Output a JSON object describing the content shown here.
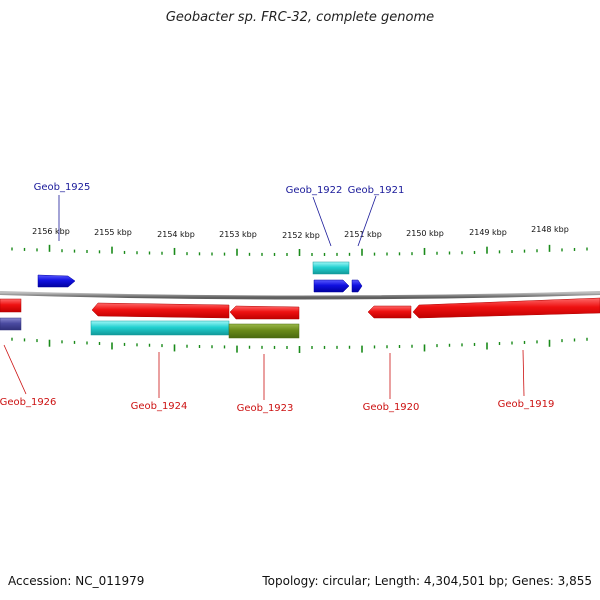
{
  "title": "Geobacter sp. FRC-32, complete genome",
  "footer": {
    "accession": "Accession: NC_011979",
    "topology": "Topology: circular; Length: 4,304,501 bp; Genes: 3,855"
  },
  "colors": {
    "backbone": "#8a8a8a",
    "ticks": "#1a8a1a",
    "forward_gene": "#1010e0",
    "forward_rna": "#00e0e0",
    "reverse_gene": "#ee1111",
    "reverse_cyan": "#22cccc",
    "reverse_olive": "#6a8a1a",
    "reverse_navy": "#4a4aa0",
    "top_labels": "#1a1a9a",
    "bottom_labels": "#cc1111"
  },
  "ticks": [
    {
      "label": "2156 kbp"
    },
    {
      "label": "2155 kbp"
    },
    {
      "label": "2154 kbp"
    },
    {
      "label": "2153 kbp"
    },
    {
      "label": "2152 kbp"
    },
    {
      "label": "2151 kbp"
    },
    {
      "label": "2150 kbp"
    },
    {
      "label": "2149 kbp"
    },
    {
      "label": "2148 kbp"
    }
  ],
  "top_genes": [
    {
      "label": "Geob_1925"
    },
    {
      "label": "Geob_1922"
    },
    {
      "label": "Geob_1921"
    }
  ],
  "bottom_genes": [
    {
      "label": "Geob_1926"
    },
    {
      "label": "Geob_1924"
    },
    {
      "label": "Geob_1923"
    },
    {
      "label": "Geob_1920"
    },
    {
      "label": "Geob_1919"
    }
  ]
}
